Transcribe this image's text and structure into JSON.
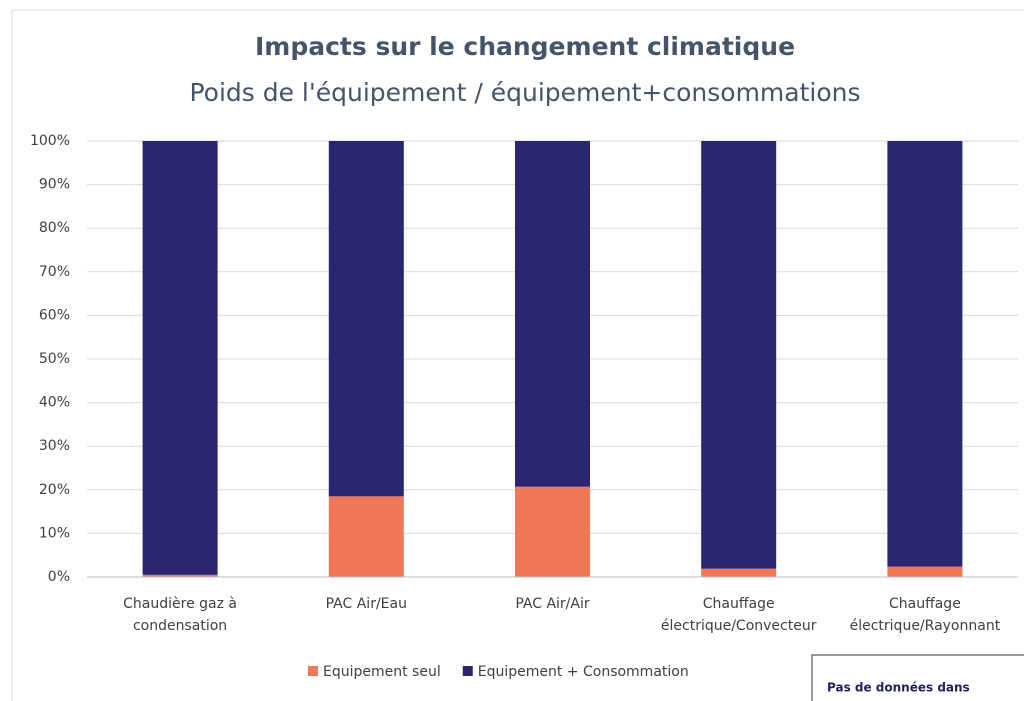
{
  "chart_data": {
    "type": "stacked_bar",
    "title": "Impacts sur le changement climatique",
    "subtitle": "Poids de l'équipement / équipement+consommations",
    "categories": [
      [
        "Chaudière gaz à",
        "condensation"
      ],
      [
        "PAC Air/Eau"
      ],
      [
        "PAC Air/Air"
      ],
      [
        "Chauffage",
        "électrique/Convecteur"
      ],
      [
        "Chauffage",
        "électrique/Rayonnant"
      ]
    ],
    "series": [
      {
        "name": "Equipement seul",
        "color": "#f07857",
        "values": [
          0.5,
          18.5,
          20.7,
          1.9,
          2.4
        ]
      },
      {
        "name": "Equipement + Consommation",
        "color": "#2a2570",
        "values": [
          99.5,
          81.5,
          79.3,
          98.1,
          97.6
        ]
      }
    ],
    "ylim": [
      0,
      100
    ],
    "yticks": [
      {
        "value": 0,
        "label": "0%"
      },
      {
        "value": 10,
        "label": "10%"
      },
      {
        "value": 20,
        "label": "20%"
      },
      {
        "value": 30,
        "label": "30%"
      },
      {
        "value": 40,
        "label": "40%"
      },
      {
        "value": 50,
        "label": "50%"
      },
      {
        "value": 60,
        "label": "60%"
      },
      {
        "value": 70,
        "label": "70%"
      },
      {
        "value": 80,
        "label": "80%"
      },
      {
        "value": 90,
        "label": "90%"
      },
      {
        "value": 100,
        "label": "100%"
      }
    ],
    "grid": true,
    "legend": "bottom",
    "annotation": "Pas de données dans"
  }
}
